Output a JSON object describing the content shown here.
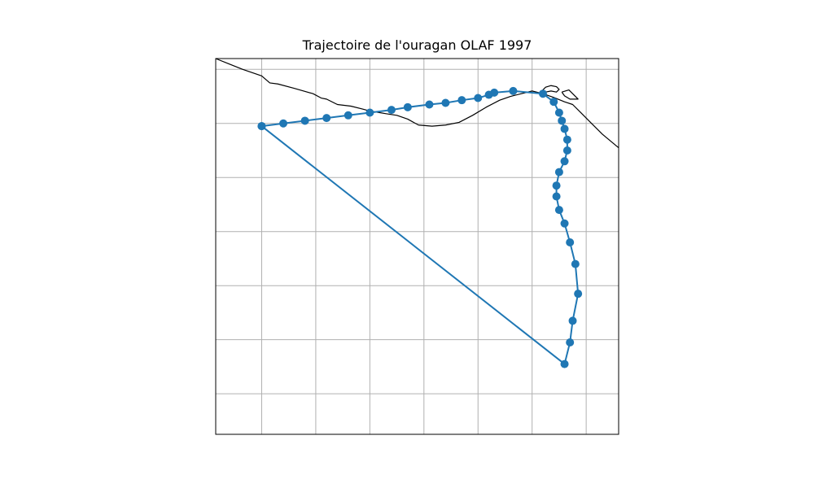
{
  "chart_data": {
    "type": "line",
    "title": "Trajectoire de l'ouragan OLAF 1997",
    "xlabel": "",
    "ylabel": "",
    "grid": true,
    "legend": "none",
    "map_projection": "PlateCarree",
    "coastline_color": "#000000",
    "grid_color": "#b0b0b0",
    "series": [
      {
        "color": "#1f77b4",
        "marker": "circle",
        "points": [
          {
            "lon": -103.2,
            "lat": 18.7
          },
          {
            "lon": -102.8,
            "lat": 18.75
          },
          {
            "lon": -102.4,
            "lat": 18.8
          },
          {
            "lon": -102.0,
            "lat": 18.85
          },
          {
            "lon": -101.6,
            "lat": 18.9
          },
          {
            "lon": -101.2,
            "lat": 18.95
          },
          {
            "lon": -100.8,
            "lat": 19.0
          },
          {
            "lon": -100.5,
            "lat": 19.05
          },
          {
            "lon": -100.1,
            "lat": 19.1
          },
          {
            "lon": -99.8,
            "lat": 19.13
          },
          {
            "lon": -99.5,
            "lat": 19.18
          },
          {
            "lon": -99.2,
            "lat": 19.22
          },
          {
            "lon": -99.0,
            "lat": 19.28
          },
          {
            "lon": -98.9,
            "lat": 19.32
          },
          {
            "lon": -98.55,
            "lat": 19.35
          },
          {
            "lon": -98.0,
            "lat": 19.3
          },
          {
            "lon": -97.8,
            "lat": 19.15
          },
          {
            "lon": -97.7,
            "lat": 18.95
          },
          {
            "lon": -97.65,
            "lat": 18.8
          },
          {
            "lon": -97.6,
            "lat": 18.65
          },
          {
            "lon": -97.55,
            "lat": 18.45
          },
          {
            "lon": -97.55,
            "lat": 18.25
          },
          {
            "lon": -97.6,
            "lat": 18.05
          },
          {
            "lon": -97.7,
            "lat": 17.85
          },
          {
            "lon": -97.75,
            "lat": 17.6
          },
          {
            "lon": -97.75,
            "lat": 17.4
          },
          {
            "lon": -97.7,
            "lat": 17.15
          },
          {
            "lon": -97.6,
            "lat": 16.9
          },
          {
            "lon": -97.5,
            "lat": 16.55
          },
          {
            "lon": -97.4,
            "lat": 16.15
          },
          {
            "lon": -97.35,
            "lat": 15.6
          },
          {
            "lon": -97.45,
            "lat": 15.1
          },
          {
            "lon": -97.5,
            "lat": 14.7
          },
          {
            "lon": -97.6,
            "lat": 14.3
          },
          {
            "lon": -103.2,
            "lat": 18.7
          }
        ]
      }
    ],
    "xlim": [
      -104.05,
      -96.6
    ],
    "ylim": [
      13.0,
      19.95
    ],
    "x_gridlines": [
      -103.2,
      -102.2,
      -101.2,
      -100.2,
      -99.2,
      -98.2,
      -97.2
    ],
    "y_gridlines": [
      19.75,
      18.75,
      17.75,
      16.75,
      15.75,
      14.75,
      13.75
    ],
    "coastlines": [
      [
        [
          -104.05,
          19.95
        ],
        [
          -103.8,
          19.85
        ],
        [
          -103.55,
          19.75
        ],
        [
          -103.2,
          19.63
        ],
        [
          -103.05,
          19.5
        ],
        [
          -102.9,
          19.48
        ],
        [
          -102.6,
          19.4
        ],
        [
          -102.25,
          19.3
        ],
        [
          -102.1,
          19.22
        ],
        [
          -102.0,
          19.2
        ],
        [
          -101.8,
          19.1
        ],
        [
          -101.55,
          19.07
        ],
        [
          -101.35,
          19.02
        ],
        [
          -101.2,
          18.98
        ],
        [
          -100.9,
          18.93
        ],
        [
          -100.7,
          18.9
        ],
        [
          -100.5,
          18.83
        ],
        [
          -100.3,
          18.72
        ],
        [
          -100.05,
          18.7
        ],
        [
          -99.8,
          18.72
        ],
        [
          -99.55,
          18.77
        ],
        [
          -99.3,
          18.9
        ],
        [
          -99.05,
          19.05
        ],
        [
          -98.8,
          19.18
        ],
        [
          -98.6,
          19.25
        ],
        [
          -98.4,
          19.3
        ],
        [
          -98.2,
          19.35
        ],
        [
          -98.0,
          19.3
        ],
        [
          -97.8,
          19.23
        ],
        [
          -97.6,
          19.15
        ],
        [
          -97.45,
          19.1
        ],
        [
          -97.3,
          18.95
        ],
        [
          -97.1,
          18.75
        ],
        [
          -96.9,
          18.55
        ],
        [
          -96.6,
          18.3
        ]
      ],
      [
        [
          -98.05,
          19.32
        ],
        [
          -97.95,
          19.42
        ],
        [
          -97.85,
          19.45
        ],
        [
          -97.75,
          19.43
        ],
        [
          -97.7,
          19.38
        ],
        [
          -97.75,
          19.33
        ],
        [
          -97.85,
          19.35
        ],
        [
          -97.95,
          19.33
        ],
        [
          -98.05,
          19.32
        ]
      ],
      [
        [
          -97.65,
          19.33
        ],
        [
          -97.52,
          19.37
        ],
        [
          -97.45,
          19.3
        ],
        [
          -97.35,
          19.2
        ],
        [
          -97.5,
          19.2
        ],
        [
          -97.6,
          19.26
        ],
        [
          -97.65,
          19.33
        ]
      ]
    ]
  }
}
